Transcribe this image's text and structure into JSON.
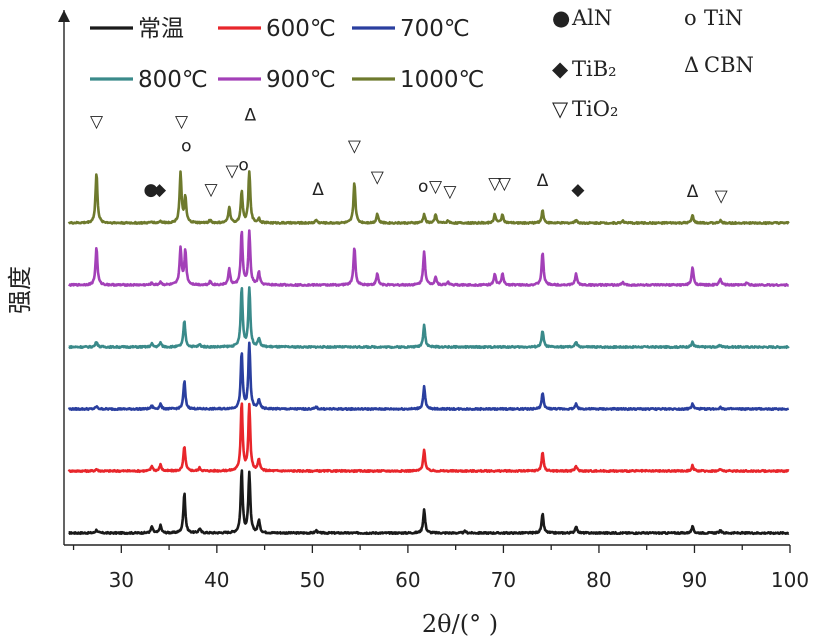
{
  "chart_data": {
    "type": "line",
    "title": "",
    "xlabel": "2θ/(° )",
    "ylabel": "强度",
    "xlim": [
      24,
      100
    ],
    "xticks": [
      30,
      40,
      50,
      60,
      70,
      80,
      90,
      100
    ],
    "y_ticks_shown": false,
    "legend_position": "top-left",
    "series": [
      {
        "name": "常温",
        "color": "#1a1a1a",
        "offset": 0,
        "peaks": [
          [
            27.4,
            0.05
          ],
          [
            33.2,
            0.1
          ],
          [
            34.1,
            0.12
          ],
          [
            36.6,
            0.65
          ],
          [
            38.2,
            0.07
          ],
          [
            42.6,
            1.0
          ],
          [
            43.4,
            0.95
          ],
          [
            44.4,
            0.2
          ],
          [
            50.4,
            0.04
          ],
          [
            61.7,
            0.38
          ],
          [
            66.0,
            0.03
          ],
          [
            74.1,
            0.3
          ],
          [
            77.6,
            0.11
          ],
          [
            89.8,
            0.1
          ],
          [
            92.7,
            0.04
          ]
        ]
      },
      {
        "name": "600℃",
        "color": "#e8262b",
        "offset": 1,
        "peaks": [
          [
            27.4,
            0.03
          ],
          [
            33.2,
            0.08
          ],
          [
            34.1,
            0.1
          ],
          [
            36.6,
            0.4
          ],
          [
            38.2,
            0.05
          ],
          [
            42.6,
            1.1
          ],
          [
            43.4,
            1.05
          ],
          [
            44.4,
            0.18
          ],
          [
            61.7,
            0.35
          ],
          [
            74.1,
            0.3
          ],
          [
            77.6,
            0.08
          ],
          [
            89.8,
            0.09
          ],
          [
            92.7,
            0.03
          ]
        ]
      },
      {
        "name": "700℃",
        "color": "#2a3f9f",
        "offset": 2,
        "peaks": [
          [
            27.4,
            0.04
          ],
          [
            33.2,
            0.05
          ],
          [
            34.1,
            0.08
          ],
          [
            36.6,
            0.45
          ],
          [
            42.6,
            0.9
          ],
          [
            43.4,
            1.05
          ],
          [
            44.4,
            0.15
          ],
          [
            50.4,
            0.03
          ],
          [
            61.7,
            0.36
          ],
          [
            74.1,
            0.25
          ],
          [
            77.6,
            0.08
          ],
          [
            89.8,
            0.08
          ],
          [
            92.7,
            0.03
          ]
        ]
      },
      {
        "name": "800℃",
        "color": "#3a8a8a",
        "offset": 3,
        "peaks": [
          [
            27.4,
            0.09
          ],
          [
            33.2,
            0.05
          ],
          [
            34.1,
            0.07
          ],
          [
            36.6,
            0.42
          ],
          [
            38.2,
            0.04
          ],
          [
            42.6,
            0.95
          ],
          [
            43.4,
            0.95
          ],
          [
            44.4,
            0.14
          ],
          [
            61.7,
            0.36
          ],
          [
            74.1,
            0.26
          ],
          [
            77.6,
            0.08
          ],
          [
            89.8,
            0.08
          ],
          [
            92.7,
            0.03
          ]
        ]
      },
      {
        "name": "900℃",
        "color": "#a340b8",
        "offset": 4,
        "peaks": [
          [
            27.4,
            0.6
          ],
          [
            33.2,
            0.03
          ],
          [
            34.1,
            0.05
          ],
          [
            36.2,
            0.6
          ],
          [
            36.7,
            0.55
          ],
          [
            39.3,
            0.06
          ],
          [
            41.3,
            0.25
          ],
          [
            42.6,
            0.85
          ],
          [
            43.4,
            0.85
          ],
          [
            44.4,
            0.2
          ],
          [
            54.4,
            0.6
          ],
          [
            56.8,
            0.18
          ],
          [
            61.7,
            0.55
          ],
          [
            62.9,
            0.13
          ],
          [
            64.2,
            0.05
          ],
          [
            69.1,
            0.17
          ],
          [
            69.9,
            0.18
          ],
          [
            74.1,
            0.52
          ],
          [
            77.6,
            0.18
          ],
          [
            82.5,
            0.04
          ],
          [
            89.8,
            0.28
          ],
          [
            92.7,
            0.1
          ],
          [
            95.5,
            0.04
          ]
        ]
      },
      {
        "name": "1000℃",
        "color": "#6e7a2d",
        "offset": 5,
        "peaks": [
          [
            27.4,
            0.8
          ],
          [
            33.2,
            0.02
          ],
          [
            34.1,
            0.03
          ],
          [
            36.2,
            0.8
          ],
          [
            36.7,
            0.4
          ],
          [
            39.3,
            0.05
          ],
          [
            41.3,
            0.26
          ],
          [
            42.6,
            0.5
          ],
          [
            43.4,
            0.82
          ],
          [
            44.4,
            0.07
          ],
          [
            50.4,
            0.05
          ],
          [
            54.4,
            0.65
          ],
          [
            56.8,
            0.15
          ],
          [
            61.7,
            0.14
          ],
          [
            62.9,
            0.13
          ],
          [
            64.2,
            0.04
          ],
          [
            69.1,
            0.14
          ],
          [
            69.9,
            0.14
          ],
          [
            74.1,
            0.2
          ],
          [
            77.6,
            0.05
          ],
          [
            82.5,
            0.04
          ],
          [
            89.8,
            0.12
          ],
          [
            92.7,
            0.04
          ]
        ]
      }
    ],
    "phase_legend": [
      {
        "symbol": "●",
        "label": "AlN"
      },
      {
        "symbol": "o",
        "label": "TiN"
      },
      {
        "symbol": "◆",
        "label": "TiB₂"
      },
      {
        "symbol": "Δ",
        "label": "CBN"
      },
      {
        "symbol": "▽",
        "label": "TiO₂"
      }
    ],
    "annotations": [
      {
        "symbol": "▽",
        "x": 27.4,
        "y_level": 6.55
      },
      {
        "symbol": "▽",
        "x": 36.3,
        "y_level": 6.55
      },
      {
        "symbol": "o",
        "x": 36.8,
        "y_level": 6.15
      },
      {
        "symbol": "Δ",
        "x": 43.5,
        "y_level": 6.65
      },
      {
        "symbol": "o",
        "x": 42.8,
        "y_level": 5.85
      },
      {
        "symbol": "▽",
        "x": 41.6,
        "y_level": 5.75
      },
      {
        "symbol": "▽",
        "x": 39.4,
        "y_level": 5.45
      },
      {
        "symbol": "●",
        "x": 33.1,
        "y_level": 5.45
      },
      {
        "symbol": "◆",
        "x": 34.0,
        "y_level": 5.45
      },
      {
        "symbol": "Δ",
        "x": 50.6,
        "y_level": 5.45
      },
      {
        "symbol": "▽",
        "x": 54.4,
        "y_level": 6.15
      },
      {
        "symbol": "▽",
        "x": 56.8,
        "y_level": 5.65
      },
      {
        "symbol": "o",
        "x": 61.6,
        "y_level": 5.5
      },
      {
        "symbol": "▽",
        "x": 62.9,
        "y_level": 5.5
      },
      {
        "symbol": "▽",
        "x": 64.4,
        "y_level": 5.42
      },
      {
        "symbol": "▽",
        "x": 69.1,
        "y_level": 5.55
      },
      {
        "symbol": "▽",
        "x": 70.1,
        "y_level": 5.55
      },
      {
        "symbol": "Δ",
        "x": 74.1,
        "y_level": 5.6
      },
      {
        "symbol": "◆",
        "x": 77.8,
        "y_level": 5.45
      },
      {
        "symbol": "Δ",
        "x": 89.8,
        "y_level": 5.42
      },
      {
        "symbol": "▽",
        "x": 92.8,
        "y_level": 5.35
      }
    ]
  }
}
